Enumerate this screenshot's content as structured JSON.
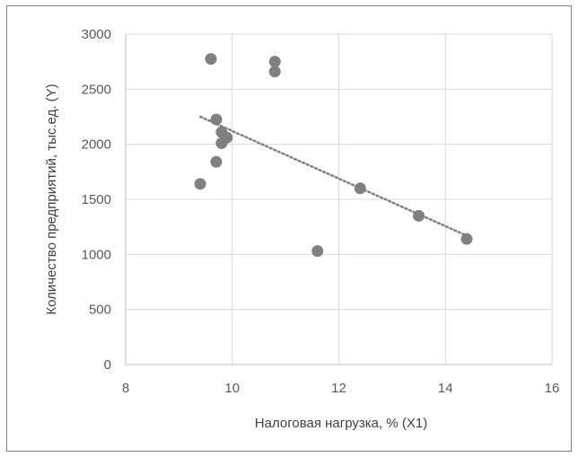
{
  "chart_data": {
    "type": "scatter",
    "title": "",
    "xlabel": "Налоговая нагрузка, % (X1)",
    "ylabel": "Количество предприятий, тыс.ед. (Y)",
    "xlim": [
      8,
      16
    ],
    "ylim": [
      0,
      3000
    ],
    "xticks": [
      "8",
      "10",
      "12",
      "14",
      "16"
    ],
    "yticks": [
      "0",
      "500",
      "1000",
      "1500",
      "2000",
      "2500",
      "3000"
    ],
    "grid": true,
    "legend": "none",
    "series": [
      {
        "points": [
          {
            "x": 9.6,
            "y": 2775
          },
          {
            "x": 10.8,
            "y": 2750
          },
          {
            "x": 10.8,
            "y": 2660
          },
          {
            "x": 9.7,
            "y": 2225
          },
          {
            "x": 9.8,
            "y": 2110
          },
          {
            "x": 9.9,
            "y": 2060
          },
          {
            "x": 9.8,
            "y": 2010
          },
          {
            "x": 9.7,
            "y": 1840
          },
          {
            "x": 9.4,
            "y": 1640
          },
          {
            "x": 12.4,
            "y": 1600
          },
          {
            "x": 13.5,
            "y": 1350
          },
          {
            "x": 14.4,
            "y": 1140
          },
          {
            "x": 11.6,
            "y": 1030
          }
        ],
        "color": "#808080"
      }
    ],
    "trendline": {
      "kind": "linear",
      "style": "dotted",
      "color": "#808080",
      "from": {
        "x": 9.4,
        "y": 2250
      },
      "to": {
        "x": 14.4,
        "y": 1170
      }
    }
  }
}
